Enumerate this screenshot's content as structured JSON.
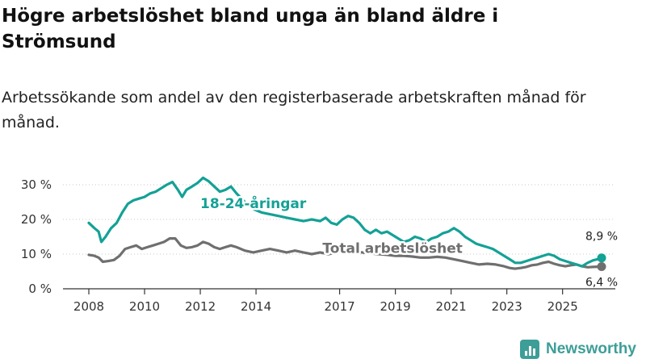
{
  "header": {
    "title": "Högre arbetslöshet bland unga än bland äldre i Strömsund",
    "subtitle": "Arbetssökande som andel av den registerbaserade arbetskraften månad för månad."
  },
  "brand": {
    "name": "Newsworthy",
    "logo_icon": "bar-chart-icon"
  },
  "colors": {
    "youth": "#14a196",
    "total": "#6f6f6f",
    "axis": "#333333"
  },
  "chart_data": {
    "type": "line",
    "x_unit": "year",
    "xlim": [
      2007.5,
      2026.8
    ],
    "ylim": [
      0,
      32
    ],
    "x_ticks": [
      {
        "value": 2008,
        "label": "2008"
      },
      {
        "value": 2010,
        "label": "2010"
      },
      {
        "value": 2012,
        "label": "2012"
      },
      {
        "value": 2014,
        "label": "2014"
      },
      {
        "value": 2017,
        "label": "2017"
      },
      {
        "value": 2019,
        "label": "2019"
      },
      {
        "value": 2021,
        "label": "2021"
      },
      {
        "value": 2023,
        "label": "2023"
      },
      {
        "value": 2025,
        "label": "2025"
      }
    ],
    "y_ticks": [
      {
        "value": 0,
        "label": "0 %"
      },
      {
        "value": 10,
        "label": "10 %"
      },
      {
        "value": 20,
        "label": "20 %"
      },
      {
        "value": 30,
        "label": "30 %"
      }
    ],
    "series": [
      {
        "name": "18-24-åringar",
        "label_at": [
          2013.9,
          23.3
        ],
        "end_label": "8,9 %",
        "points": [
          [
            2008.0,
            19.0
          ],
          [
            2008.2,
            17.5
          ],
          [
            2008.35,
            16.5
          ],
          [
            2008.45,
            13.5
          ],
          [
            2008.6,
            15.0
          ],
          [
            2008.8,
            17.5
          ],
          [
            2009.0,
            19.0
          ],
          [
            2009.2,
            22.0
          ],
          [
            2009.4,
            24.5
          ],
          [
            2009.6,
            25.5
          ],
          [
            2009.8,
            26.0
          ],
          [
            2010.0,
            26.5
          ],
          [
            2010.2,
            27.5
          ],
          [
            2010.4,
            28.0
          ],
          [
            2010.6,
            29.0
          ],
          [
            2010.8,
            30.0
          ],
          [
            2011.0,
            30.8
          ],
          [
            2011.2,
            28.5
          ],
          [
            2011.35,
            26.5
          ],
          [
            2011.5,
            28.5
          ],
          [
            2011.7,
            29.5
          ],
          [
            2011.9,
            30.5
          ],
          [
            2012.1,
            32.0
          ],
          [
            2012.3,
            31.0
          ],
          [
            2012.5,
            29.5
          ],
          [
            2012.7,
            28.0
          ],
          [
            2012.9,
            28.5
          ],
          [
            2013.1,
            29.5
          ],
          [
            2013.3,
            27.5
          ],
          [
            2013.6,
            25.0
          ],
          [
            2013.9,
            23.0
          ],
          [
            2014.2,
            22.0
          ],
          [
            2014.5,
            21.5
          ],
          [
            2014.8,
            21.0
          ],
          [
            2015.1,
            20.5
          ],
          [
            2015.4,
            20.0
          ],
          [
            2015.7,
            19.5
          ],
          [
            2016.0,
            20.0
          ],
          [
            2016.3,
            19.5
          ],
          [
            2016.5,
            20.5
          ],
          [
            2016.7,
            19.0
          ],
          [
            2016.9,
            18.5
          ],
          [
            2017.1,
            20.0
          ],
          [
            2017.3,
            21.0
          ],
          [
            2017.5,
            20.5
          ],
          [
            2017.7,
            19.0
          ],
          [
            2017.9,
            17.0
          ],
          [
            2018.1,
            16.0
          ],
          [
            2018.3,
            17.0
          ],
          [
            2018.5,
            16.0
          ],
          [
            2018.7,
            16.5
          ],
          [
            2018.9,
            15.5
          ],
          [
            2019.1,
            14.5
          ],
          [
            2019.3,
            13.5
          ],
          [
            2019.5,
            14.0
          ],
          [
            2019.7,
            15.0
          ],
          [
            2019.9,
            14.5
          ],
          [
            2020.1,
            13.5
          ],
          [
            2020.3,
            14.5
          ],
          [
            2020.5,
            15.0
          ],
          [
            2020.7,
            16.0
          ],
          [
            2020.9,
            16.5
          ],
          [
            2021.1,
            17.5
          ],
          [
            2021.3,
            16.5
          ],
          [
            2021.5,
            15.0
          ],
          [
            2021.7,
            14.0
          ],
          [
            2021.9,
            13.0
          ],
          [
            2022.1,
            12.5
          ],
          [
            2022.3,
            12.0
          ],
          [
            2022.5,
            11.5
          ],
          [
            2022.7,
            10.5
          ],
          [
            2022.9,
            9.5
          ],
          [
            2023.1,
            8.5
          ],
          [
            2023.3,
            7.5
          ],
          [
            2023.5,
            7.5
          ],
          [
            2023.7,
            8.0
          ],
          [
            2023.9,
            8.5
          ],
          [
            2024.1,
            9.0
          ],
          [
            2024.3,
            9.5
          ],
          [
            2024.5,
            10.0
          ],
          [
            2024.7,
            9.5
          ],
          [
            2024.9,
            8.5
          ],
          [
            2025.1,
            8.0
          ],
          [
            2025.3,
            7.5
          ],
          [
            2025.5,
            7.0
          ],
          [
            2025.7,
            6.5
          ],
          [
            2025.9,
            7.5
          ],
          [
            2026.1,
            8.2
          ],
          [
            2026.3,
            8.6
          ],
          [
            2026.4,
            8.9
          ]
        ]
      },
      {
        "name": "Total arbetslöshet",
        "label_at": [
          2018.9,
          10.3
        ],
        "end_label": "6,4 %",
        "points": [
          [
            2008.0,
            9.8
          ],
          [
            2008.2,
            9.5
          ],
          [
            2008.35,
            9.0
          ],
          [
            2008.5,
            7.8
          ],
          [
            2008.7,
            8.0
          ],
          [
            2008.9,
            8.3
          ],
          [
            2009.1,
            9.5
          ],
          [
            2009.3,
            11.5
          ],
          [
            2009.5,
            12.0
          ],
          [
            2009.7,
            12.5
          ],
          [
            2009.9,
            11.5
          ],
          [
            2010.1,
            12.0
          ],
          [
            2010.3,
            12.5
          ],
          [
            2010.5,
            13.0
          ],
          [
            2010.7,
            13.5
          ],
          [
            2010.9,
            14.5
          ],
          [
            2011.1,
            14.5
          ],
          [
            2011.3,
            12.5
          ],
          [
            2011.5,
            11.8
          ],
          [
            2011.7,
            12.0
          ],
          [
            2011.9,
            12.5
          ],
          [
            2012.1,
            13.5
          ],
          [
            2012.3,
            13.0
          ],
          [
            2012.5,
            12.0
          ],
          [
            2012.7,
            11.5
          ],
          [
            2012.9,
            12.0
          ],
          [
            2013.1,
            12.5
          ],
          [
            2013.3,
            12.0
          ],
          [
            2013.6,
            11.0
          ],
          [
            2013.9,
            10.5
          ],
          [
            2014.2,
            11.0
          ],
          [
            2014.5,
            11.5
          ],
          [
            2014.8,
            11.0
          ],
          [
            2015.1,
            10.5
          ],
          [
            2015.4,
            11.0
          ],
          [
            2015.7,
            10.5
          ],
          [
            2016.0,
            10.0
          ],
          [
            2016.3,
            10.5
          ],
          [
            2016.6,
            10.0
          ],
          [
            2016.9,
            10.5
          ],
          [
            2017.2,
            11.0
          ],
          [
            2017.5,
            10.8
          ],
          [
            2017.8,
            10.5
          ],
          [
            2018.1,
            10.2
          ],
          [
            2018.4,
            10.0
          ],
          [
            2018.7,
            9.8
          ],
          [
            2019.0,
            9.5
          ],
          [
            2019.3,
            9.5
          ],
          [
            2019.6,
            9.3
          ],
          [
            2019.9,
            9.0
          ],
          [
            2020.2,
            9.0
          ],
          [
            2020.5,
            9.2
          ],
          [
            2020.8,
            9.0
          ],
          [
            2021.1,
            8.5
          ],
          [
            2021.4,
            8.0
          ],
          [
            2021.7,
            7.5
          ],
          [
            2022.0,
            7.0
          ],
          [
            2022.3,
            7.2
          ],
          [
            2022.6,
            7.0
          ],
          [
            2022.9,
            6.5
          ],
          [
            2023.1,
            6.0
          ],
          [
            2023.3,
            5.8
          ],
          [
            2023.5,
            6.0
          ],
          [
            2023.7,
            6.3
          ],
          [
            2023.9,
            6.8
          ],
          [
            2024.1,
            7.0
          ],
          [
            2024.3,
            7.5
          ],
          [
            2024.5,
            7.8
          ],
          [
            2024.7,
            7.2
          ],
          [
            2024.9,
            6.8
          ],
          [
            2025.1,
            6.5
          ],
          [
            2025.3,
            6.8
          ],
          [
            2025.5,
            7.0
          ],
          [
            2025.7,
            6.5
          ],
          [
            2025.9,
            6.2
          ],
          [
            2026.1,
            6.3
          ],
          [
            2026.4,
            6.4
          ]
        ]
      }
    ]
  }
}
